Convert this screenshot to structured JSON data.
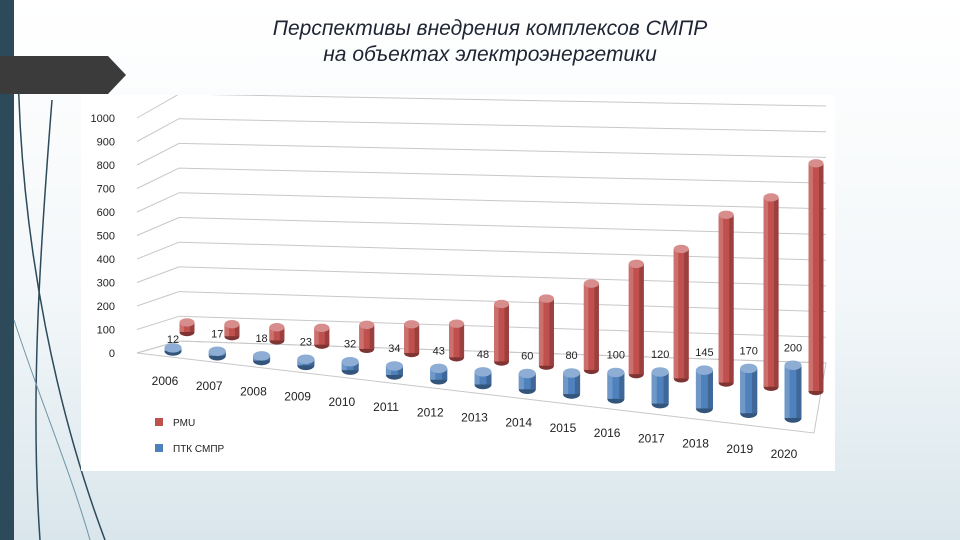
{
  "slide": {
    "title_line1": "Перспективы внедрения комплексов СМПР",
    "title_line2": "на объектах электроэнергетики"
  },
  "colors": {
    "pmu": "#c0504d",
    "ptk": "#4f81bd",
    "band": "#2c4a5a"
  },
  "chart_data": {
    "type": "bar",
    "title": "",
    "xlabel": "",
    "ylabel": "",
    "ylim": [
      0,
      1000
    ],
    "yticks": [
      "0",
      "100",
      "200",
      "300",
      "400",
      "500",
      "600",
      "700",
      "800",
      "900",
      "1000"
    ],
    "categories": [
      "2006",
      "2007",
      "2008",
      "2009",
      "2010",
      "2011",
      "2012",
      "2013",
      "2014",
      "2015",
      "2016",
      "2017",
      "2018",
      "2019",
      "2020"
    ],
    "grid": true,
    "legend_position": "bottom-left",
    "series": [
      {
        "name": "PMU",
        "color": "#c0504d",
        "values": [
          40,
          50,
          55,
          70,
          100,
          120,
          140,
          240,
          280,
          360,
          460,
          540,
          700,
          790,
          950
        ]
      },
      {
        "name": "ПТК СМПР",
        "color": "#4f81bd",
        "values": [
          12,
          17,
          18,
          23,
          32,
          34,
          43,
          48,
          60,
          80,
          100,
          120,
          145,
          170,
          200
        ],
        "labels": [
          "12",
          "17",
          "18",
          "23",
          "32",
          "34",
          "43",
          "48",
          "60",
          "80",
          "100",
          "120",
          "145",
          "170",
          "200"
        ]
      }
    ]
  }
}
